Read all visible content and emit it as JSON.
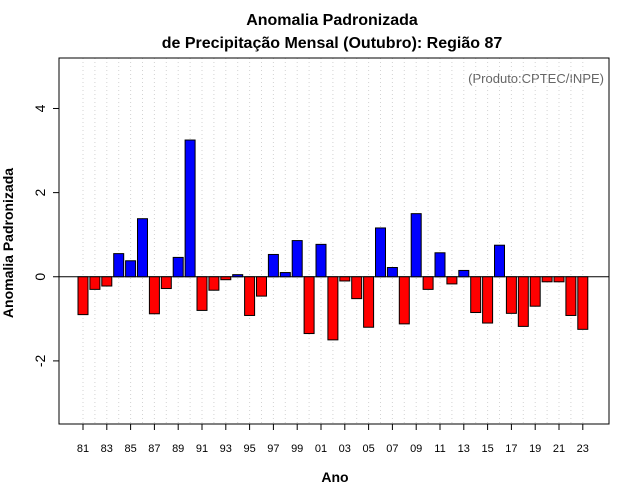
{
  "chart_data": {
    "type": "bar",
    "title_line1": "Anomalia Padronizada",
    "title_line2": "de Precipitação Mensal (Outubro): Região 87",
    "credit": "(Produto:CPTEC/INPE)",
    "xlabel": "Ano",
    "ylabel": "Anomalia Padronizada",
    "ylim": [
      -3.5,
      5.2
    ],
    "yticks": [
      -2,
      0,
      2,
      4
    ],
    "ytick_labels": [
      "-2",
      "0",
      "2",
      "4"
    ],
    "grid": true,
    "categories": [
      "81",
      "82",
      "83",
      "84",
      "85",
      "86",
      "87",
      "88",
      "89",
      "90",
      "91",
      "92",
      "93",
      "94",
      "95",
      "96",
      "97",
      "98",
      "99",
      "00",
      "01",
      "02",
      "03",
      "04",
      "05",
      "06",
      "07",
      "08",
      "09",
      "10",
      "11",
      "12",
      "13",
      "14",
      "15",
      "16",
      "17",
      "18",
      "19",
      "20",
      "21",
      "22",
      "23"
    ],
    "xtick_labels": [
      "81",
      "83",
      "85",
      "87",
      "89",
      "91",
      "93",
      "95",
      "97",
      "99",
      "01",
      "03",
      "05",
      "07",
      "09",
      "11",
      "13",
      "15",
      "17",
      "19",
      "21",
      "23"
    ],
    "values": [
      -0.9,
      -0.3,
      -0.22,
      0.55,
      0.38,
      1.38,
      -0.88,
      -0.28,
      0.46,
      3.25,
      -0.8,
      -0.32,
      -0.07,
      0.05,
      -0.92,
      -0.46,
      0.53,
      0.1,
      0.86,
      -1.35,
      0.77,
      -1.5,
      -0.1,
      -0.52,
      -1.2,
      1.16,
      0.22,
      -1.12,
      1.5,
      -0.3,
      0.57,
      -0.17,
      0.15,
      -0.85,
      -1.1,
      0.75,
      -0.87,
      -1.18,
      -0.7,
      -0.12,
      -0.12,
      -0.92,
      -1.25
    ],
    "colors": {
      "positive": "#0000ff",
      "negative": "#ff0000",
      "zero_line": "#000000",
      "grid": "#d3d3d3",
      "credit": "#666666"
    }
  }
}
